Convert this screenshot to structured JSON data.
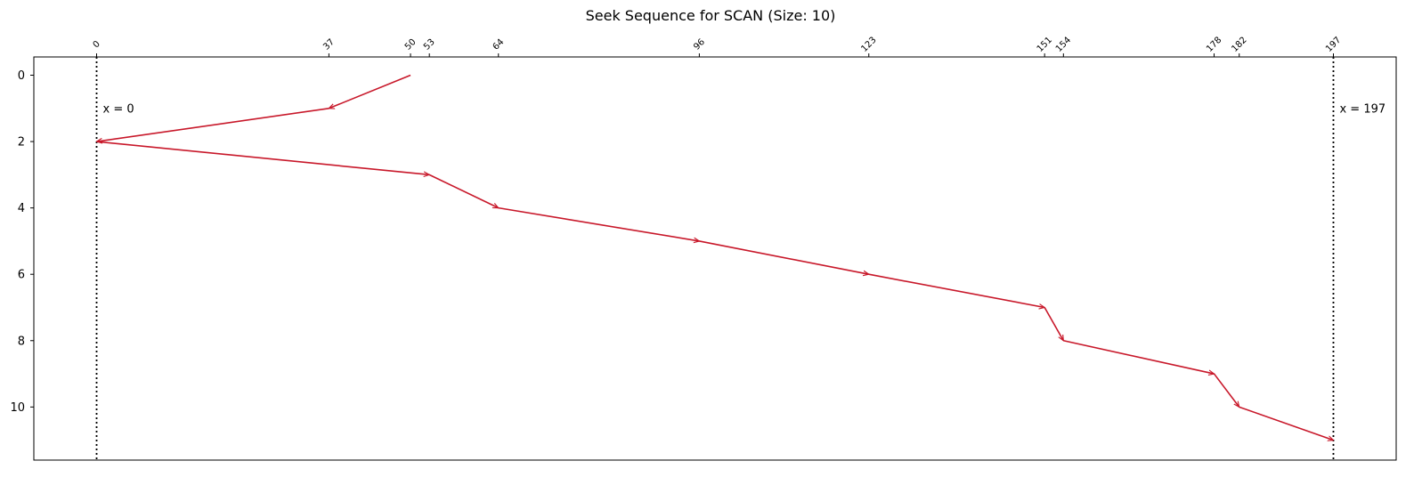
{
  "chart_data": {
    "type": "line",
    "title": "Seek Sequence for SCAN (Size: 10)",
    "xlabel": "",
    "ylabel": "",
    "x_ticks": [
      0,
      37,
      50,
      53,
      64,
      96,
      123,
      151,
      154,
      178,
      182,
      197
    ],
    "x_tick_position": "top",
    "xlim": [
      -10,
      207
    ],
    "y_ticks": [
      0,
      2,
      4,
      6,
      8,
      10
    ],
    "ylim": [
      11.6,
      -0.55
    ],
    "y_inverted": true,
    "grid": false,
    "series": [
      {
        "color": "#c8182a",
        "style": "arrows",
        "x": [
          50,
          37,
          0,
          53,
          64,
          96,
          123,
          151,
          154,
          178,
          182,
          197
        ],
        "y": [
          0,
          1,
          2,
          3,
          4,
          5,
          6,
          7,
          8,
          9,
          10,
          11
        ]
      }
    ],
    "vlines": [
      {
        "x": 0,
        "style": "dotted",
        "color": "#000000",
        "label": "x = 0"
      },
      {
        "x": 197,
        "style": "dotted",
        "color": "#000000",
        "label": "x = 197"
      }
    ]
  }
}
